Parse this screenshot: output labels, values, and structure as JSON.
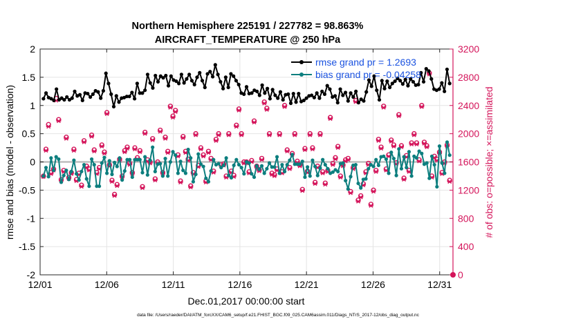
{
  "chart_data": {
    "type": "line",
    "title_line1": "Northern Hemisphere 225191 / 227782 = 98.863%",
    "title_line2": "AIRCRAFT_TEMPERATURE @ 250 hPa",
    "xlabel": "Dec.01,2017 00:00:00 start",
    "ylabel_left": "rmse and bias (model - observation)",
    "ylabel_right": "# of obs: o=possible; ×=assimilated",
    "footer": "data file: /Users/raeder/DAI/ATM_forcXX/CAM6_setup/f.e21.FHIST_BGC.f09_025.CAM6assim.011/Diags_NTrS_2017-12/obs_diag_output.nc",
    "x_ticks": [
      "12/01",
      "12/06",
      "12/11",
      "12/16",
      "12/21",
      "12/26",
      "12/31"
    ],
    "x_tick_days": [
      0,
      5,
      10,
      15,
      20,
      25,
      30
    ],
    "xlim": [
      0,
      31
    ],
    "y_left_ticks": [
      "2",
      "1.5",
      "1",
      "0.5",
      "0",
      "-0.5",
      "-1",
      "-1.5",
      "-2"
    ],
    "y_left_tick_values": [
      2,
      1.5,
      1,
      0.5,
      0,
      -0.5,
      -1,
      -1.5,
      -2
    ],
    "ylim_left": [
      -2,
      2
    ],
    "y_right_ticks": [
      "3200",
      "2800",
      "2400",
      "2000",
      "1600",
      "1200",
      "800",
      "400",
      "0"
    ],
    "y_right_tick_values": [
      3200,
      2800,
      2400,
      2000,
      1600,
      1200,
      800,
      400,
      0
    ],
    "ylim_right": [
      0,
      3200
    ],
    "grid": true,
    "legend_position": "top-right",
    "colors": {
      "rmse": "#000000",
      "bias": "#0c7e7e",
      "obs": "#d4145a",
      "legend_text": "#1a52e0",
      "grid": "#e4e4e4",
      "zero_line": "#bdbdbd"
    },
    "series": [
      {
        "name": "rmse grand pr = 1.2693",
        "values": [
          1.12,
          1.22,
          1.14,
          1.12,
          1.09,
          1.29,
          1.1,
          1.13,
          1.1,
          1.15,
          1.1,
          1.13,
          1.25,
          1.17,
          1.19,
          1.09,
          1.22,
          1.21,
          1.15,
          1.2,
          1.26,
          1.24,
          1.13,
          1.26,
          1.57,
          1.39,
          1.2,
          0.98,
          1.17,
          1.06,
          1.13,
          1.14,
          1.16,
          1.16,
          1.23,
          1.12,
          1.39,
          1.22,
          1.22,
          1.27,
          1.55,
          1.4,
          1.31,
          1.53,
          1.42,
          1.52,
          1.49,
          1.53,
          1.35,
          1.52,
          1.45,
          1.43,
          1.39,
          1.55,
          1.4,
          1.47,
          1.55,
          1.44,
          1.37,
          1.5,
          1.58,
          1.44,
          1.32,
          1.56,
          1.6,
          1.51,
          1.72,
          1.55,
          1.42,
          1.3,
          1.5,
          1.32,
          1.56,
          1.52,
          1.44,
          1.37,
          1.22,
          1.2,
          1.33,
          1.21,
          1.22,
          1.27,
          1.25,
          1.18,
          1.36,
          1.22,
          1.3,
          1.12,
          1.28,
          1.18,
          1.13,
          1.24,
          1.1,
          1.19,
          1.2,
          1.04,
          1.21,
          1.06,
          1.21,
          1.07,
          1.09,
          1.13,
          1.17,
          1.18,
          1.14,
          1.22,
          1.13,
          1.25,
          1.2,
          1.35,
          1.29,
          1.15,
          1.17,
          1.05,
          1.29,
          1.18,
          1.23,
          1.08,
          1.22,
          1.15,
          1.25,
          1.05,
          1.11,
          1.08,
          1.24,
          1.45,
          1.34,
          1.52,
          1.27,
          1.1,
          1.44,
          1.3,
          1.43,
          1.32,
          1.39,
          1.43,
          1.48,
          1.44,
          1.38,
          1.46,
          1.35,
          1.47,
          1.42,
          1.36,
          1.37,
          1.58,
          1.42,
          1.65,
          1.61,
          1.47,
          1.29,
          1.27,
          1.29,
          1.4,
          1.25,
          1.64,
          1.39
        ],
        "marker": "filled-circle"
      },
      {
        "name": "bias grand pr = -0.04258",
        "values": [
          -0.25,
          -0.1,
          -0.26,
          0.07,
          -0.15,
          0.09,
          0.05,
          -0.36,
          -0.24,
          -0.15,
          -0.31,
          -0.17,
          0.03,
          -0.21,
          -0.32,
          -0.17,
          -0.05,
          -0.3,
          -0.43,
          0.05,
          -0.05,
          -0.43,
          -0.43,
          -0.02,
          0.08,
          -0.2,
          0.02,
          -0.22,
          -0.01,
          -0.08,
          0.07,
          -0.32,
          -0.16,
          0.04,
          0.04,
          -0.27,
          0.04,
          0.04,
          0.04,
          -0.19,
          0.09,
          -0.23,
          0.03,
          0.26,
          -0.17,
          -0.04,
          -0.03,
          -0.25,
          0.06,
          -0.25,
          0.0,
          0.18,
          0.12,
          -0.2,
          0.01,
          -0.15,
          -0.2,
          0.22,
          0.07,
          -0.35,
          -0.22,
          0.14,
          -0.04,
          -0.08,
          -0.29,
          -0.35,
          -0.16,
          0.04,
          -0.05,
          -0.03,
          -0.1,
          -0.06,
          0.07,
          -0.24,
          -0.28,
          -0.06,
          0.04,
          -0.05,
          -0.1,
          -0.21,
          0.0,
          -0.02,
          -0.21,
          -0.27,
          -0.07,
          -0.13,
          -0.07,
          -0.2,
          -0.12,
          -0.02,
          -0.09,
          -0.09,
          0.09,
          -0.2,
          -0.05,
          -0.17,
          -0.05,
          0.03,
          0.13,
          -0.04,
          -0.04,
          -0.04,
          0.01,
          -0.27,
          -0.09,
          -0.25,
          0.03,
          -0.08,
          -0.24,
          -0.11,
          0.04,
          -0.05,
          -0.12,
          -0.2,
          -0.18,
          -0.14,
          -0.17,
          -0.03,
          -0.02,
          -0.33,
          -0.48,
          -0.26,
          -0.06,
          -0.05,
          -0.38,
          -0.46,
          -0.31,
          -0.3,
          -0.12,
          -0.05,
          -0.08,
          0.04,
          -0.06,
          0.09,
          0.1,
          0.05,
          -0.2,
          0.17,
          0.06,
          -0.24,
          0.23,
          -0.12,
          0.09,
          -0.1,
          0.18,
          -0.25,
          0.1,
          0.07,
          0.19,
          0.15,
          -0.04,
          -0.02,
          -0.29,
          0.1,
          -0.05,
          -0.44,
          0.28,
          -0.02,
          -0.2,
          0.35,
          0.12
        ],
        "marker": "filled-circle"
      }
    ],
    "obs_possible": [
      1400,
      1780,
      2130,
      1450,
      1500,
      2500,
      2200,
      1350,
      1480,
      1950,
      1380,
      1450,
      1780,
      1350,
      1440,
      1270,
      1900,
      1540,
      1500,
      1980,
      1770,
      1450,
      1520,
      1840,
      1740,
      2300,
      1560,
      1340,
      1140,
      1280,
      1640,
      1400,
      1760,
      1810,
      1580,
      1450,
      1800,
      1660,
      1760,
      1250,
      2020,
      1630,
      1600,
      1930,
      1360,
      1600,
      2050,
      1450,
      1950,
      1750,
      2390,
      2250,
      2330,
      1700,
      1330,
      1960,
      1750,
      1640,
      1260,
      1450,
      2000,
      1550,
      1800,
      1700,
      1330,
      1750,
      1650,
      1470,
      1920,
      2000,
      1560,
      1570,
      1400,
      2000,
      1470,
      1410,
      2120,
      2350,
      2000,
      1600,
      1600,
      1460,
      1620,
      2180,
      1540,
      1490,
      1650,
      2450,
      2360,
      2000,
      1440,
      1420,
      1500,
      2000,
      1460,
      2400,
      1770,
      1520,
      1720,
      2000,
      1610,
      1560,
      1210,
      1790,
      1470,
      2000,
      1800,
      1310,
      1540,
      2000,
      1460,
      1300,
      1480,
      2230,
      1580,
      1660,
      1820,
      1400,
      1560,
      1630,
      1650,
      1180,
      1520,
      2470,
      1060,
      1120,
      1290,
      1460,
      1580,
      1000,
      1200,
      1480,
      1920,
      1810,
      2390,
      1500,
      1700,
      1910,
      1840,
      1590,
      2270,
      1830,
      1370,
      1690,
      1480,
      1870,
      2000,
      1870,
      1630,
      2400,
      1880,
      1830,
      2860,
      1400,
      1680,
      1640,
      1740,
      1450,
      1600,
      1840,
      1340
    ],
    "obs_assimilated": [
      1390,
      1760,
      2100,
      1430,
      1480,
      2470,
      2180,
      1330,
      1460,
      1930,
      1360,
      1430,
      1760,
      1330,
      1420,
      1250,
      1880,
      1520,
      1480,
      1960,
      1750,
      1430,
      1500,
      1820,
      1720,
      2280,
      1540,
      1320,
      1120,
      1260,
      1620,
      1380,
      1740,
      1790,
      1560,
      1430,
      1780,
      1640,
      1740,
      1230,
      2000,
      1610,
      1580,
      1910,
      1340,
      1580,
      2030,
      1430,
      1930,
      1730,
      2370,
      2230,
      2310,
      1680,
      1310,
      1940,
      1730,
      1620,
      1240,
      1430,
      1980,
      1530,
      1780,
      1680,
      1310,
      1730,
      1630,
      1450,
      1900,
      1980,
      1540,
      1550,
      1380,
      1980,
      1450,
      1390,
      2100,
      2330,
      1980,
      1580,
      1580,
      1440,
      1600,
      2160,
      1520,
      1470,
      1630,
      2430,
      2340,
      1980,
      1420,
      1400,
      1480,
      1980,
      1440,
      2380,
      1750,
      1500,
      1700,
      1980,
      1590,
      1540,
      1190,
      1770,
      1450,
      1980,
      1780,
      1290,
      1520,
      1980,
      1440,
      1280,
      1460,
      2210,
      1560,
      1640,
      1800,
      1380,
      1540,
      1610,
      1630,
      1160,
      1500,
      2450,
      1040,
      1100,
      1270,
      1440,
      1560,
      980,
      1180,
      1460,
      1900,
      1790,
      2370,
      1480,
      1680,
      1890,
      1820,
      1570,
      2250,
      1810,
      1350,
      1670,
      1460,
      1850,
      1980,
      1850,
      1610,
      2380,
      1860,
      1810,
      2840,
      1380,
      1660,
      1620,
      1720,
      1430,
      1580,
      1820,
      1320
    ]
  }
}
